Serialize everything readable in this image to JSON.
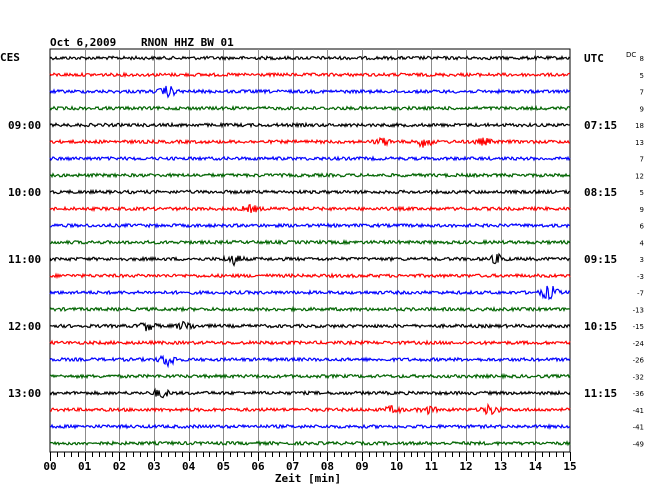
{
  "header": {
    "date": "Oct 6,2009",
    "station": "RNON HHZ BW 01",
    "left_tz": "CES",
    "right_tz": "UTC",
    "dc_label": "DC"
  },
  "chart_data": {
    "type": "line",
    "title": "Oct 6,2009   RNON HHZ BW 01",
    "xlabel": "Zeit [min]",
    "xlim": [
      0,
      15
    ],
    "x_ticks": [
      "00",
      "01",
      "02",
      "03",
      "04",
      "05",
      "06",
      "07",
      "08",
      "09",
      "10",
      "11",
      "12",
      "13",
      "14",
      "15"
    ],
    "grid": true,
    "trace_colors": [
      "#000000",
      "#ff0000",
      "#0000ff",
      "#006400"
    ],
    "left_hour_labels": [
      {
        "trace": 4,
        "label": "09:00"
      },
      {
        "trace": 8,
        "label": "10:00"
      },
      {
        "trace": 12,
        "label": "11:00"
      },
      {
        "trace": 16,
        "label": "12:00"
      },
      {
        "trace": 20,
        "label": "13:00"
      }
    ],
    "right_hour_labels": [
      {
        "trace": 0,
        "label": "UTC"
      },
      {
        "trace": 4,
        "label": "07:15"
      },
      {
        "trace": 8,
        "label": "08:15"
      },
      {
        "trace": 12,
        "label": "09:15"
      },
      {
        "trace": 16,
        "label": "10:15"
      },
      {
        "trace": 20,
        "label": "11:15"
      }
    ],
    "dc_offsets": [
      "8",
      "5",
      "7",
      "9",
      "18",
      "13",
      "7",
      "12",
      "5",
      "9",
      "6",
      "4",
      "3",
      "-3",
      "-7",
      "-13",
      "-15",
      "-24",
      "-26",
      "-32",
      "-36",
      "-41",
      "-41",
      "-49"
    ],
    "events": [
      {
        "trace": 2,
        "minute": 3.4,
        "amp": 5
      },
      {
        "trace": 5,
        "minute": 9.6,
        "amp": 3
      },
      {
        "trace": 5,
        "minute": 10.8,
        "amp": 5
      },
      {
        "trace": 5,
        "minute": 12.5,
        "amp": 3
      },
      {
        "trace": 9,
        "minute": 5.8,
        "amp": 3
      },
      {
        "trace": 12,
        "minute": 5.3,
        "amp": 5
      },
      {
        "trace": 12,
        "minute": 12.9,
        "amp": 4
      },
      {
        "trace": 14,
        "minute": 14.4,
        "amp": 7
      },
      {
        "trace": 16,
        "minute": 2.8,
        "amp": 4
      },
      {
        "trace": 16,
        "minute": 3.9,
        "amp": 4
      },
      {
        "trace": 18,
        "minute": 3.4,
        "amp": 6
      },
      {
        "trace": 20,
        "minute": 3.2,
        "amp": 4
      },
      {
        "trace": 21,
        "minute": 9.9,
        "amp": 3
      },
      {
        "trace": 21,
        "minute": 10.9,
        "amp": 3
      },
      {
        "trace": 21,
        "minute": 12.7,
        "amp": 5
      }
    ]
  }
}
